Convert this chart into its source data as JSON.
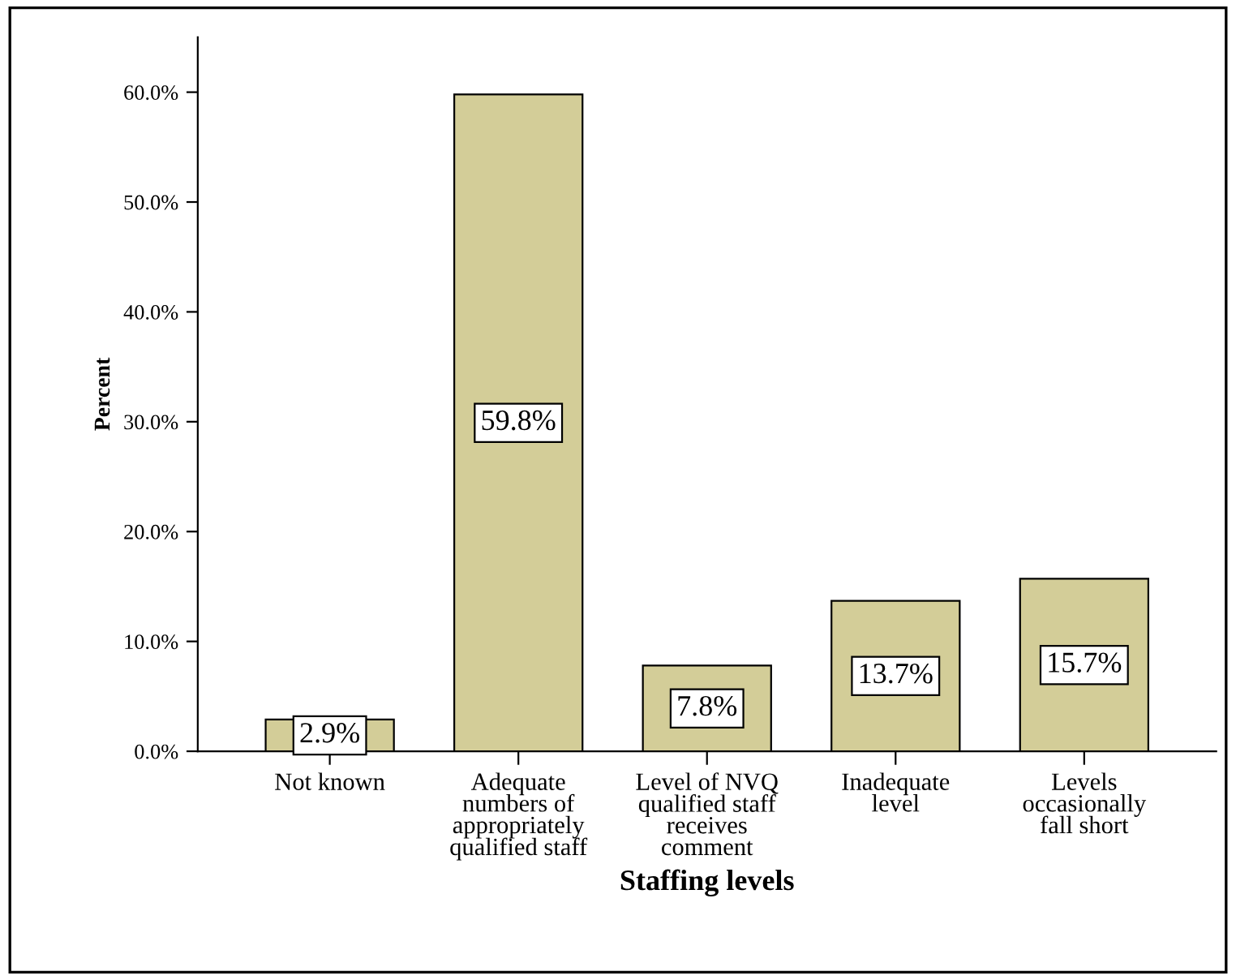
{
  "chart_data": {
    "type": "bar",
    "xlabel": "Staffing levels",
    "ylabel": "Percent",
    "categories": [
      "Not known",
      "Adequate\nnumbers of\nappropriately\nqualified staff",
      "Level of NVQ\nqualified staff\nreceives\ncomment",
      "Inadequate\nlevel",
      "Levels\noccasionally\nfall short"
    ],
    "values": [
      2.9,
      59.8,
      7.8,
      13.7,
      15.7
    ],
    "value_labels": [
      "2.9%",
      "59.8%",
      "7.8%",
      "13.7%",
      "15.7%"
    ],
    "color": "#d3cd98",
    "ylim": [
      0,
      65
    ],
    "yticks": [
      {
        "value": 0,
        "label": "0.0%"
      },
      {
        "value": 10,
        "label": "10.0%"
      },
      {
        "value": 20,
        "label": "20.0%"
      },
      {
        "value": 30,
        "label": "30.0%"
      },
      {
        "value": 40,
        "label": "40.0%"
      },
      {
        "value": 50,
        "label": "50.0%"
      },
      {
        "value": 60,
        "label": "60.0%"
      }
    ],
    "grid": false,
    "legend": false
  }
}
